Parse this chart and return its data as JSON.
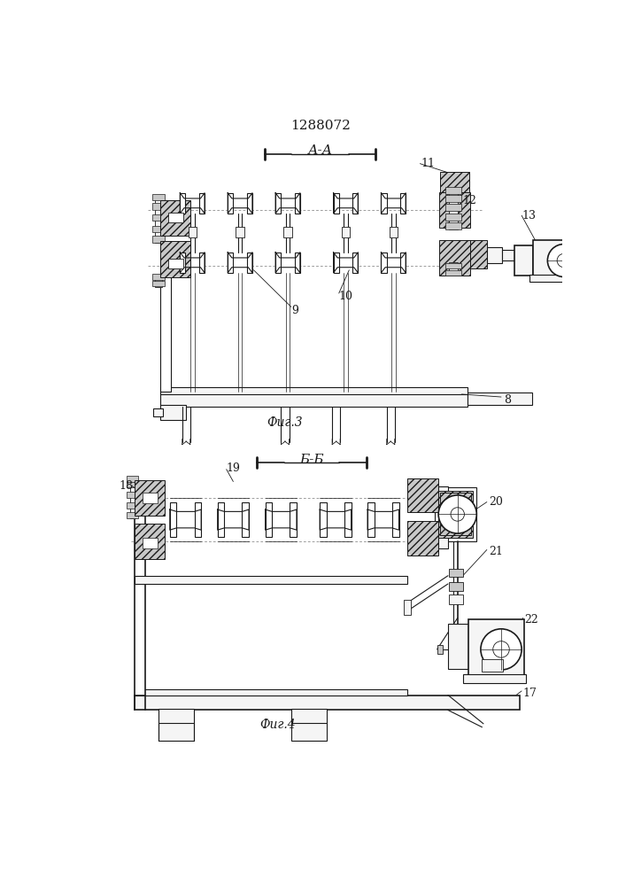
{
  "title": "1288072",
  "fig3_label": "А-А",
  "fig3_caption": "Фиг.3",
  "fig4_caption": "Фиг.4",
  "fig4_label": "Б-Б",
  "bg_color": "#ffffff",
  "line_color": "#1a1a1a",
  "hatch_fc": "#c8c8c8",
  "light_fc": "#f5f5f5"
}
